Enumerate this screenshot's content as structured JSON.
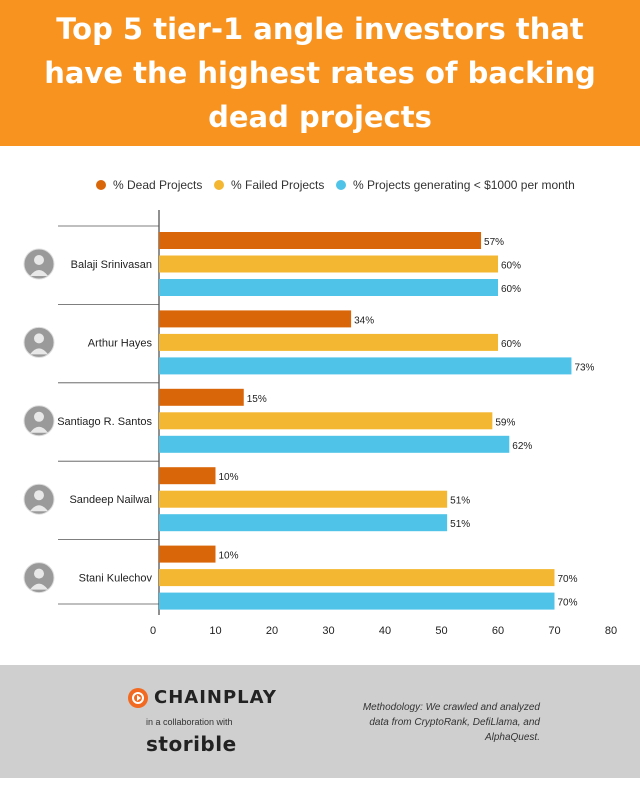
{
  "header": {
    "title": "Top 5 tier-1 angle investors that have the highest rates of backing dead projects"
  },
  "legend": [
    {
      "label": "% Dead Projects",
      "color": "#d9670a"
    },
    {
      "label": "% Failed Projects",
      "color": "#f4b731"
    },
    {
      "label": "% Projects generating < $1000 per month",
      "color": "#4fc3e8"
    }
  ],
  "chart_data": {
    "type": "bar",
    "orientation": "horizontal",
    "categories": [
      "Balaji Srinivasan",
      "Arthur Hayes",
      "Santiago R. Santos",
      "Sandeep Nailwal",
      "Stani Kulechov"
    ],
    "series": [
      {
        "name": "% Dead Projects",
        "color": "#d9670a",
        "values": [
          57,
          34,
          15,
          10,
          10
        ]
      },
      {
        "name": "% Failed Projects",
        "color": "#f4b731",
        "values": [
          60,
          60,
          59,
          51,
          70
        ]
      },
      {
        "name": "% Projects generating < $1000 per month",
        "color": "#4fc3e8",
        "values": [
          60,
          73,
          62,
          51,
          70
        ]
      }
    ],
    "value_labels": [
      [
        "57%",
        "34%",
        "15%",
        "10%",
        "10%"
      ],
      [
        "60%",
        "60%",
        "59%",
        "51%",
        "70%"
      ],
      [
        "60%",
        "73%",
        "62%",
        "51%",
        "70%"
      ]
    ],
    "xlim": [
      0,
      80
    ],
    "xticks": [
      "0",
      "10",
      "20",
      "30",
      "40",
      "50",
      "60",
      "70",
      "80"
    ],
    "grid": false,
    "legend_position": "top"
  },
  "footer": {
    "brand": "CHAINPLAY",
    "collab": "in a collaboration with",
    "partner": "storible",
    "methodology": "Methodology: We crawled and analyzed data from CryptoRank, DefiLlama, and AlphaQuest."
  }
}
